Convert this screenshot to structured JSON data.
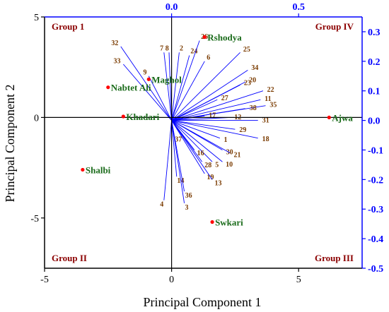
{
  "chart_data": {
    "type": "scatter",
    "subtype": "biplot",
    "xlabel": "Principal Component 1",
    "ylabel": "Principal Component 2",
    "xlim": [
      -5,
      7.5
    ],
    "ylim": [
      -7.5,
      5
    ],
    "x_ticks": [
      "-5",
      "0",
      "5"
    ],
    "y_ticks": [
      "5",
      "0",
      "-5"
    ],
    "loading_xlim": [
      -0.5,
      0.75
    ],
    "loading_ylim": [
      -0.5,
      0.35
    ],
    "top_ticks": [
      "0.0",
      "0.5"
    ],
    "right_ticks": [
      "0.3",
      "0.2",
      "0.1",
      "0.0",
      "-0.1",
      "-0.2",
      "-0.3",
      "-0.4",
      "-0.5"
    ],
    "colors": {
      "scores_point": "#ff0000",
      "scores_label": "#1a6b1a",
      "vectors": "#0000ff",
      "vector_labels": "#7a3b00",
      "group_labels": "#8b0000",
      "secondary_axis": "#0000ff"
    },
    "group_labels": [
      {
        "text": "Group 1",
        "corner": "top-left"
      },
      {
        "text": "Group IV",
        "corner": "top-right"
      },
      {
        "text": "Group II",
        "corner": "bottom-left"
      },
      {
        "text": "Group III",
        "corner": "bottom-right"
      }
    ],
    "scores": [
      {
        "name": "Rshodya",
        "x": 1.3,
        "y": 4.0
      },
      {
        "name": "Maghol",
        "x": -0.9,
        "y": 1.9
      },
      {
        "name": "Nabtet Ali",
        "x": -2.5,
        "y": 1.5
      },
      {
        "name": "Khadari",
        "x": -1.9,
        "y": 0.05
      },
      {
        "name": "Ajwa",
        "x": 6.2,
        "y": 0.0
      },
      {
        "name": "Shalbi",
        "x": -3.5,
        "y": -2.6
      },
      {
        "name": "Swkari",
        "x": 1.6,
        "y": -5.2
      }
    ],
    "loadings": [
      {
        "name": "32",
        "x": -0.2,
        "y": 0.25
      },
      {
        "name": "33",
        "x": -0.19,
        "y": 0.19
      },
      {
        "name": "7",
        "x": -0.03,
        "y": 0.23
      },
      {
        "name": "8",
        "x": -0.01,
        "y": 0.23
      },
      {
        "name": "2",
        "x": 0.03,
        "y": 0.23
      },
      {
        "name": "24",
        "x": 0.07,
        "y": 0.22
      },
      {
        "name": "26",
        "x": 0.11,
        "y": 0.27
      },
      {
        "name": "6",
        "x": 0.13,
        "y": 0.2
      },
      {
        "name": "9",
        "x": -0.09,
        "y": 0.15
      },
      {
        "name": "25",
        "x": 0.27,
        "y": 0.23
      },
      {
        "name": "34",
        "x": 0.3,
        "y": 0.17
      },
      {
        "name": "20",
        "x": 0.29,
        "y": 0.13
      },
      {
        "name": "23",
        "x": 0.27,
        "y": 0.12
      },
      {
        "name": "22",
        "x": 0.36,
        "y": 0.1
      },
      {
        "name": "11",
        "x": 0.35,
        "y": 0.07
      },
      {
        "name": "35",
        "x": 0.37,
        "y": 0.05
      },
      {
        "name": "38",
        "x": 0.29,
        "y": 0.04
      },
      {
        "name": "27",
        "x": 0.18,
        "y": 0.07
      },
      {
        "name": "17",
        "x": 0.13,
        "y": 0.015
      },
      {
        "name": "12",
        "x": 0.23,
        "y": 0.01
      },
      {
        "name": "31",
        "x": 0.34,
        "y": 0.0
      },
      {
        "name": "29",
        "x": 0.25,
        "y": -0.03
      },
      {
        "name": "18",
        "x": 0.34,
        "y": -0.06
      },
      {
        "name": "1",
        "x": 0.19,
        "y": -0.06
      },
      {
        "name": "30",
        "x": 0.2,
        "y": -0.1
      },
      {
        "name": "21",
        "x": 0.23,
        "y": -0.11
      },
      {
        "name": "10",
        "x": 0.2,
        "y": -0.14
      },
      {
        "name": "5",
        "x": 0.16,
        "y": -0.14
      },
      {
        "name": "28",
        "x": 0.12,
        "y": -0.14
      },
      {
        "name": "16",
        "x": 0.09,
        "y": -0.1
      },
      {
        "name": "19",
        "x": 0.13,
        "y": -0.18
      },
      {
        "name": "13",
        "x": 0.16,
        "y": -0.2
      },
      {
        "name": "37",
        "x": 0.01,
        "y": -0.05
      },
      {
        "name": "14",
        "x": 0.02,
        "y": -0.19
      },
      {
        "name": "36",
        "x": 0.05,
        "y": -0.24
      },
      {
        "name": "3",
        "x": 0.05,
        "y": -0.28
      },
      {
        "name": "4",
        "x": -0.03,
        "y": -0.27
      }
    ]
  }
}
